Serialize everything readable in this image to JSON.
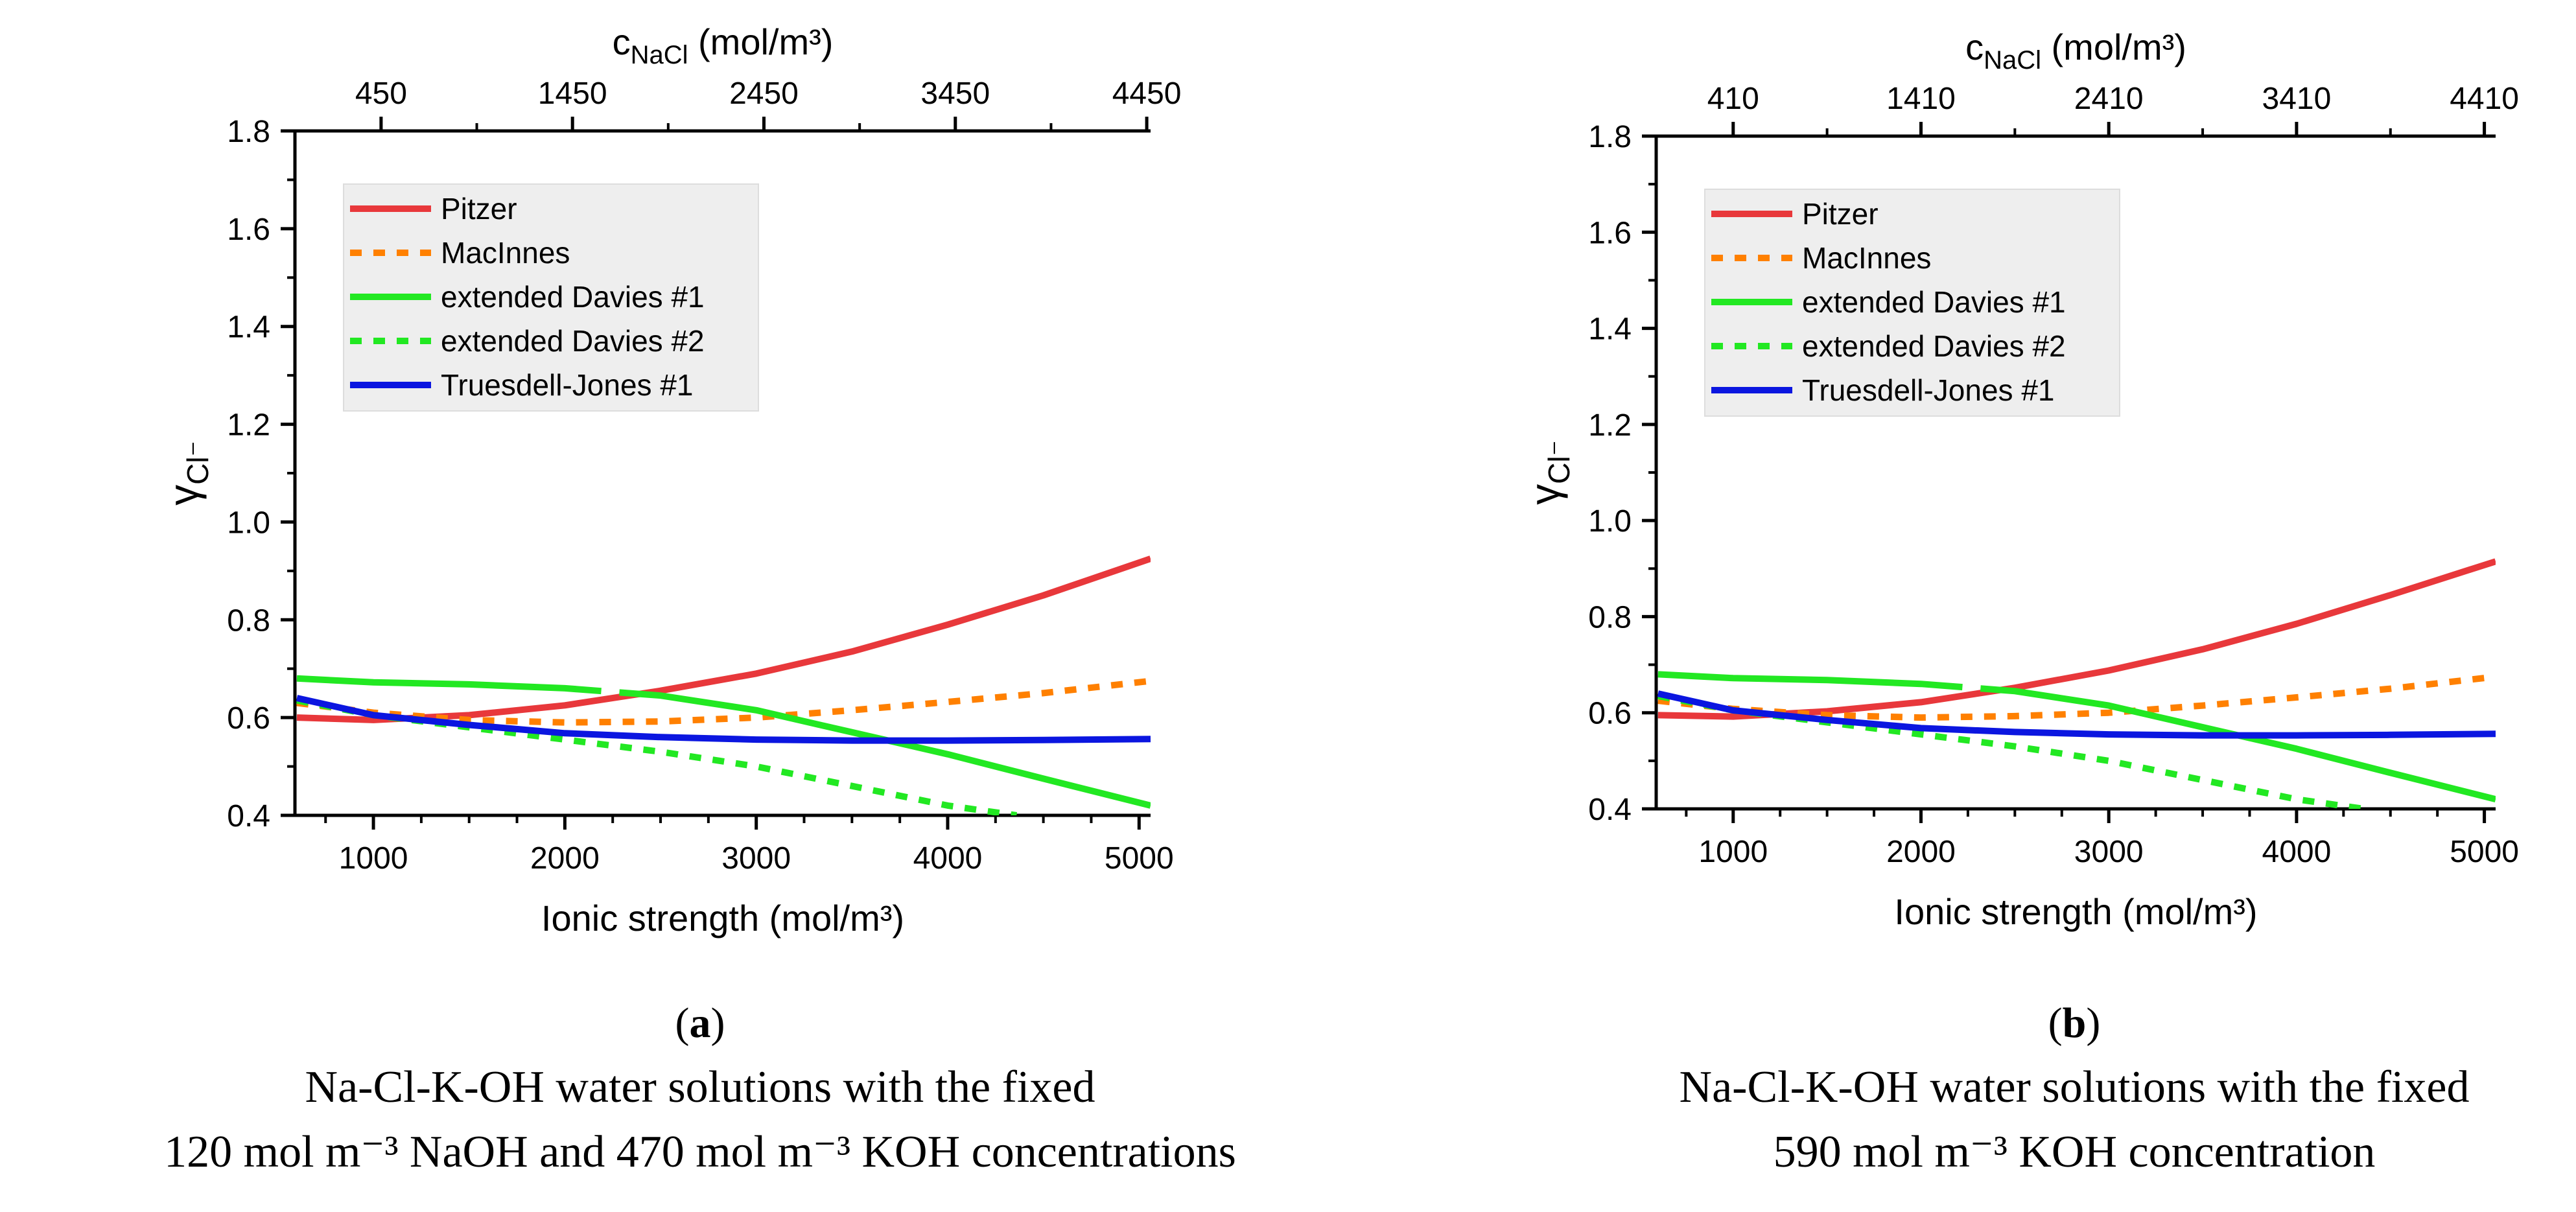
{
  "chart_data": [
    {
      "type": "line",
      "panel_label": "a",
      "caption_lines": [
        "Na-Cl-K-OH water solutions with the fixed",
        "120 mol m⁻³ NaOH and 470 mol m⁻³ KOH concentrations"
      ],
      "xlabel": "Ionic strength (mol/m³)",
      "ylabel": "γCl⁻",
      "top_xlabel": "cNaCl (mol/m³)",
      "xlim": [
        590,
        5060
      ],
      "ylim": [
        0.4,
        1.8
      ],
      "x_ticks": [
        1000,
        2000,
        3000,
        4000,
        5000
      ],
      "x_tick_labels": [
        "1000",
        "2000",
        "3000",
        "4000",
        "5000"
      ],
      "y_ticks": [
        0.4,
        0.6,
        0.8,
        1.0,
        1.2,
        1.4,
        1.6,
        1.8
      ],
      "y_tick_labels": [
        "0.4",
        "0.6",
        "0.8",
        "1.0",
        "1.2",
        "1.4",
        "1.6",
        "1.8"
      ],
      "top_ticks": [
        1040,
        2040,
        3040,
        4040,
        5040
      ],
      "top_tick_labels": [
        "450",
        "1450",
        "2450",
        "3450",
        "4450"
      ],
      "legend": [
        "Pitzer",
        "MacInnes",
        "extended Davies #1",
        "extended Davies #2",
        "Truesdell-Jones #1"
      ],
      "legend_position": "top-left",
      "series": [
        {
          "name": "Pitzer",
          "color": "#e8383b",
          "style": "solid",
          "x": [
            600,
            1000,
            1500,
            2000,
            2500,
            3000,
            3500,
            4000,
            4500,
            5060
          ],
          "y": [
            0.6,
            0.595,
            0.605,
            0.625,
            0.655,
            0.69,
            0.735,
            0.79,
            0.85,
            0.925
          ]
        },
        {
          "name": "MacInnes",
          "color": "#ff8000",
          "style": "dotted",
          "x": [
            600,
            1000,
            1500,
            2000,
            2500,
            3000,
            3500,
            4000,
            4500,
            5060
          ],
          "y": [
            0.63,
            0.61,
            0.595,
            0.59,
            0.592,
            0.6,
            0.615,
            0.632,
            0.65,
            0.675
          ]
        },
        {
          "name": "extended Davies #1",
          "color": "#22e822",
          "style": "solid-gap",
          "x": [
            600,
            1000,
            1500,
            2000,
            2500,
            3000,
            3500,
            4000,
            4500,
            5060
          ],
          "y": [
            0.68,
            0.672,
            0.668,
            0.66,
            0.645,
            0.615,
            0.57,
            0.525,
            0.475,
            0.42
          ]
        },
        {
          "name": "extended Davies #2",
          "color": "#22e822",
          "style": "dotted",
          "x": [
            600,
            1000,
            1500,
            2000,
            2500,
            3000,
            3500,
            4000,
            4360
          ],
          "y": [
            0.635,
            0.605,
            0.58,
            0.555,
            0.53,
            0.5,
            0.46,
            0.42,
            0.4
          ]
        },
        {
          "name": "Truesdell-Jones #1",
          "color": "#0b16e0",
          "style": "solid",
          "x": [
            600,
            1000,
            1500,
            2000,
            2500,
            3000,
            3500,
            4000,
            4500,
            5060
          ],
          "y": [
            0.64,
            0.605,
            0.585,
            0.568,
            0.56,
            0.555,
            0.553,
            0.553,
            0.554,
            0.556
          ]
        }
      ]
    },
    {
      "type": "line",
      "panel_label": "b",
      "caption_lines": [
        "Na-Cl-K-OH water solutions with the fixed",
        "590 mol m⁻³ KOH concentration"
      ],
      "xlabel": "Ionic strength (mol/m³)",
      "ylabel": "γCl⁻",
      "top_xlabel": "cNaCl (mol/m³)",
      "xlim": [
        590,
        5060
      ],
      "ylim": [
        0.4,
        1.8
      ],
      "x_ticks": [
        1000,
        2000,
        3000,
        4000,
        5000
      ],
      "x_tick_labels": [
        "1000",
        "2000",
        "3000",
        "4000",
        "5000"
      ],
      "y_ticks": [
        0.4,
        0.6,
        0.8,
        1.0,
        1.2,
        1.4,
        1.6,
        1.8
      ],
      "y_tick_labels": [
        "0.4",
        "0.6",
        "0.8",
        "1.0",
        "1.2",
        "1.4",
        "1.6",
        "1.8"
      ],
      "top_ticks": [
        1000,
        2000,
        3000,
        4000,
        5000
      ],
      "top_tick_labels": [
        "410",
        "1410",
        "2410",
        "3410",
        "4410"
      ],
      "legend": [
        "Pitzer",
        "MacInnes",
        "extended Davies #1",
        "extended Davies #2",
        "Truesdell-Jones #1"
      ],
      "legend_position": "top-left",
      "series": [
        {
          "name": "Pitzer",
          "color": "#e8383b",
          "style": "solid",
          "x": [
            600,
            1000,
            1500,
            2000,
            2500,
            3000,
            3500,
            4000,
            4500,
            5060
          ],
          "y": [
            0.595,
            0.592,
            0.603,
            0.622,
            0.652,
            0.688,
            0.732,
            0.785,
            0.845,
            0.915
          ]
        },
        {
          "name": "MacInnes",
          "color": "#ff8000",
          "style": "dotted",
          "x": [
            600,
            1000,
            1500,
            2000,
            2500,
            3000,
            3500,
            4000,
            4500,
            5060
          ],
          "y": [
            0.625,
            0.608,
            0.595,
            0.59,
            0.593,
            0.6,
            0.615,
            0.632,
            0.65,
            0.675
          ]
        },
        {
          "name": "extended Davies #1",
          "color": "#22e822",
          "style": "solid-gap",
          "x": [
            600,
            1000,
            1500,
            2000,
            2500,
            3000,
            3500,
            4000,
            4500,
            5060
          ],
          "y": [
            0.68,
            0.672,
            0.668,
            0.66,
            0.645,
            0.615,
            0.57,
            0.525,
            0.475,
            0.42
          ]
        },
        {
          "name": "extended Davies #2",
          "color": "#22e822",
          "style": "dotted",
          "x": [
            600,
            1000,
            1500,
            2000,
            2500,
            3000,
            3500,
            4000,
            4360
          ],
          "y": [
            0.635,
            0.605,
            0.58,
            0.555,
            0.53,
            0.5,
            0.46,
            0.42,
            0.4
          ]
        },
        {
          "name": "Truesdell-Jones #1",
          "color": "#0b16e0",
          "style": "solid",
          "x": [
            600,
            1000,
            1500,
            2000,
            2500,
            3000,
            3500,
            4000,
            4500,
            5060
          ],
          "y": [
            0.64,
            0.605,
            0.585,
            0.568,
            0.56,
            0.555,
            0.553,
            0.553,
            0.554,
            0.556
          ]
        }
      ]
    }
  ]
}
